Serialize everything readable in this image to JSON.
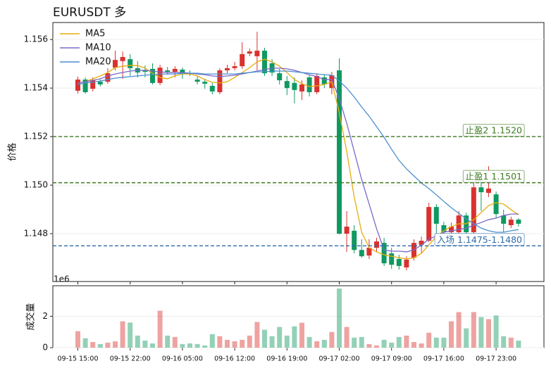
{
  "chart_data": [
    {
      "type": "candlestick",
      "title": "EURUSDT  多",
      "y_label": "价格",
      "offset_label": "1e6",
      "categories": [
        "09-15 15:00",
        null,
        null,
        null,
        null,
        null,
        null,
        "09-15 22:00",
        null,
        null,
        null,
        null,
        null,
        null,
        "09-16 05:00",
        null,
        null,
        null,
        null,
        null,
        null,
        "09-16 12:00",
        null,
        null,
        null,
        null,
        null,
        null,
        "09-16 19:00",
        null,
        null,
        null,
        null,
        null,
        null,
        "09-17 02:00",
        null,
        null,
        null,
        null,
        null,
        null,
        "09-17 09:00",
        null,
        null,
        null,
        null,
        null,
        null,
        "09-17 16:00",
        null,
        null,
        null,
        null,
        null,
        null,
        "09-17 23:00",
        null,
        null,
        null
      ],
      "open": [
        1.15389,
        1.15435,
        1.15397,
        1.15426,
        1.15426,
        1.15484,
        1.15511,
        1.15519,
        1.15482,
        1.15473,
        1.15479,
        1.15421,
        1.15473,
        1.15467,
        1.15476,
        1.15461,
        1.15435,
        1.15426,
        1.15409,
        1.15383,
        1.15473,
        1.15482,
        1.1549,
        1.15542,
        1.15531,
        1.15554,
        1.15502,
        1.15461,
        1.15429,
        1.15421,
        1.15386,
        1.15444,
        1.15383,
        1.15444,
        1.154,
        1.15473,
        1.148,
        1.14812,
        1.14733,
        1.1471,
        1.14742,
        1.14762,
        1.14719,
        1.14696,
        1.14661,
        1.14701,
        1.14754,
        1.14771,
        1.1491,
        1.14835,
        1.14806,
        1.14806,
        1.14875,
        1.14806,
        1.14991,
        1.14968,
        1.14962,
        1.14875,
        1.14835,
        1.14858
      ],
      "high": [
        1.15447,
        1.15444,
        1.15444,
        1.15435,
        1.15482,
        1.15554,
        1.15551,
        1.1554,
        1.15511,
        1.15493,
        1.15502,
        1.15496,
        1.15487,
        1.1549,
        1.15484,
        1.15473,
        1.1545,
        1.15438,
        1.15421,
        1.15482,
        1.15496,
        1.15508,
        1.15589,
        1.15563,
        1.15632,
        1.15566,
        1.15519,
        1.15479,
        1.1545,
        1.15444,
        1.15432,
        1.15455,
        1.15461,
        1.15458,
        1.15467,
        1.15522,
        1.14893,
        1.14835,
        1.14777,
        1.14777,
        1.14783,
        1.14783,
        1.14742,
        1.14713,
        1.14707,
        1.14777,
        1.14788,
        1.14928,
        1.14922,
        1.14849,
        1.14846,
        1.14893,
        1.14887,
        1.15038,
        1.15038,
        1.15078,
        1.14974,
        1.14899,
        1.1487,
        1.14864
      ],
      "low": [
        1.15377,
        1.15377,
        1.15386,
        1.15406,
        1.15418,
        1.15473,
        1.15438,
        1.1545,
        1.15444,
        1.15444,
        1.15415,
        1.15412,
        1.15455,
        1.15444,
        1.15438,
        1.1545,
        1.15415,
        1.15397,
        1.15374,
        1.15374,
        1.15461,
        1.15473,
        1.15479,
        1.15531,
        1.15473,
        1.1545,
        1.1545,
        1.15415,
        1.15371,
        1.15337,
        1.15351,
        1.15366,
        1.15374,
        1.154,
        1.15374,
        1.14797,
        1.14725,
        1.14719,
        1.14701,
        1.14696,
        1.14725,
        1.14667,
        1.14655,
        1.14652,
        1.14649,
        1.1469,
        1.14719,
        1.14765,
        1.14797,
        1.14791,
        1.14794,
        1.14794,
        1.14794,
        1.14797,
        1.14893,
        1.14951,
        1.14864,
        1.14806,
        1.14823,
        1.14829
      ],
      "close": [
        1.15435,
        1.15383,
        1.15432,
        1.15415,
        1.15461,
        1.15516,
        1.15528,
        1.15482,
        1.15464,
        1.15467,
        1.15421,
        1.15484,
        1.15467,
        1.15479,
        1.15461,
        1.15458,
        1.15426,
        1.15418,
        1.15386,
        1.15473,
        1.15482,
        1.1549,
        1.1554,
        1.15551,
        1.15554,
        1.15461,
        1.15464,
        1.15432,
        1.154,
        1.15392,
        1.15415,
        1.15383,
        1.1545,
        1.15415,
        1.15453,
        1.148,
        1.14829,
        1.14733,
        1.14707,
        1.14742,
        1.14768,
        1.14678,
        1.14672,
        1.14667,
        1.14693,
        1.14762,
        1.14771,
        1.1491,
        1.14841,
        1.14806,
        1.14829,
        1.14875,
        1.14806,
        1.14991,
        1.14971,
        1.14986,
        1.14881,
        1.14841,
        1.14858,
        1.14841
      ],
      "up_color": "#d9322e",
      "down_color": "#0f9960",
      "series": [
        {
          "name": "MA5",
          "color": "#e6ac0c",
          "values": [
            1.15421,
            1.15426,
            1.15438,
            1.1545,
            1.15464,
            1.15484,
            1.1549,
            1.15493,
            1.15493,
            1.15482,
            1.15461,
            1.15444,
            1.15438,
            1.1545,
            1.15458,
            1.15458,
            1.1545,
            1.15435,
            1.15424,
            1.15421,
            1.15426,
            1.15444,
            1.15464,
            1.15484,
            1.15508,
            1.15519,
            1.15508,
            1.1549,
            1.15464,
            1.15435,
            1.15418,
            1.15406,
            1.15409,
            1.15415,
            1.15426,
            1.15299,
            1.15139,
            1.14951,
            1.14806,
            1.14742,
            1.14725,
            1.14713,
            1.14707,
            1.14701,
            1.14696,
            1.14701,
            1.14719,
            1.14754,
            1.14788,
            1.14812,
            1.14829,
            1.14841,
            1.14841,
            1.14858,
            1.14887,
            1.14916,
            1.14928,
            1.14922,
            1.14899,
            1.14878
          ]
        },
        {
          "name": "MA10",
          "color": "#7b68c8",
          "values": [
            1.15421,
            1.15426,
            1.15432,
            1.15438,
            1.1545,
            1.15458,
            1.15464,
            1.1547,
            1.15473,
            1.15473,
            1.1547,
            1.15467,
            1.15464,
            1.15464,
            1.15464,
            1.15461,
            1.15458,
            1.15455,
            1.1545,
            1.15447,
            1.1545,
            1.15453,
            1.15458,
            1.15464,
            1.1547,
            1.15476,
            1.15482,
            1.15482,
            1.15479,
            1.15473,
            1.15464,
            1.15455,
            1.15447,
            1.15435,
            1.15435,
            1.15357,
            1.15255,
            1.15139,
            1.15023,
            1.14922,
            1.1482,
            1.14733,
            1.14728,
            1.14728,
            1.14725,
            1.14733,
            1.14754,
            1.14777,
            1.14791,
            1.14806,
            1.14812,
            1.14817,
            1.14823,
            1.14835,
            1.14846,
            1.14858,
            1.14864,
            1.14875,
            1.14881,
            1.14881
          ]
        },
        {
          "name": "MA20",
          "color": "#4a90d0",
          "values": [
            1.15415,
            1.15421,
            1.15424,
            1.15429,
            1.15435,
            1.15441,
            1.15444,
            1.15447,
            1.1545,
            1.15453,
            1.15455,
            1.15458,
            1.15458,
            1.15458,
            1.15461,
            1.15461,
            1.15461,
            1.15458,
            1.15458,
            1.15458,
            1.15458,
            1.15458,
            1.15461,
            1.15464,
            1.15467,
            1.15467,
            1.1547,
            1.1547,
            1.1547,
            1.15467,
            1.15464,
            1.15461,
            1.15458,
            1.15455,
            1.15453,
            1.15429,
            1.154,
            1.15363,
            1.15322,
            1.15284,
            1.15241,
            1.15197,
            1.15148,
            1.15102,
            1.15067,
            1.15038,
            1.15009,
            1.14986,
            1.1496,
            1.14933,
            1.14907,
            1.14884,
            1.14861,
            1.14841,
            1.14823,
            1.14812,
            1.14806,
            1.14806,
            1.14812,
            1.14817
          ]
        }
      ],
      "hlines": [
        {
          "value": 1.152,
          "label": "止盈2 1.1520",
          "color": "#3d7a1f"
        },
        {
          "value": 1.1501,
          "label": "止盈1 1.1501",
          "color": "#3d7a1f"
        },
        {
          "value": 1.1475,
          "label": "入场 1.1475-1.1480",
          "color": "#2f6aa8"
        }
      ],
      "ylim": [
        1.14603,
        1.1567
      ],
      "yticks": [
        1.148,
        {
          "value": 1.15,
          "label": "1.150"
        },
        1.152,
        1.154,
        1.156
      ],
      "grid": true,
      "legend": "upper left"
    },
    {
      "type": "bar",
      "y_label": "成交量",
      "values": [
        1.05,
        0.6,
        0.36,
        0.23,
        0.32,
        0.4,
        1.68,
        1.6,
        0.77,
        0.45,
        0.27,
        2.36,
        0.77,
        0.68,
        0.23,
        0.27,
        0.23,
        0.14,
        0.86,
        0.73,
        0.5,
        0.41,
        0.5,
        0.77,
        1.64,
        1.14,
        0.73,
        1.32,
        0.77,
        1.36,
        1.59,
        0.68,
        0.41,
        0.5,
        1.0,
        3.77,
        1.32,
        0.64,
        0.68,
        0.23,
        0.14,
        0.5,
        0.32,
        0.68,
        0.77,
        0.36,
        0.27,
        0.95,
        0.64,
        0.64,
        1.68,
        2.27,
        1.23,
        2.27,
        1.95,
        1.82,
        2.05,
        0.73,
        0.64,
        0.45
      ],
      "ylim": [
        0,
        3.95
      ],
      "yticks": [
        0,
        2
      ],
      "grid": true
    }
  ]
}
